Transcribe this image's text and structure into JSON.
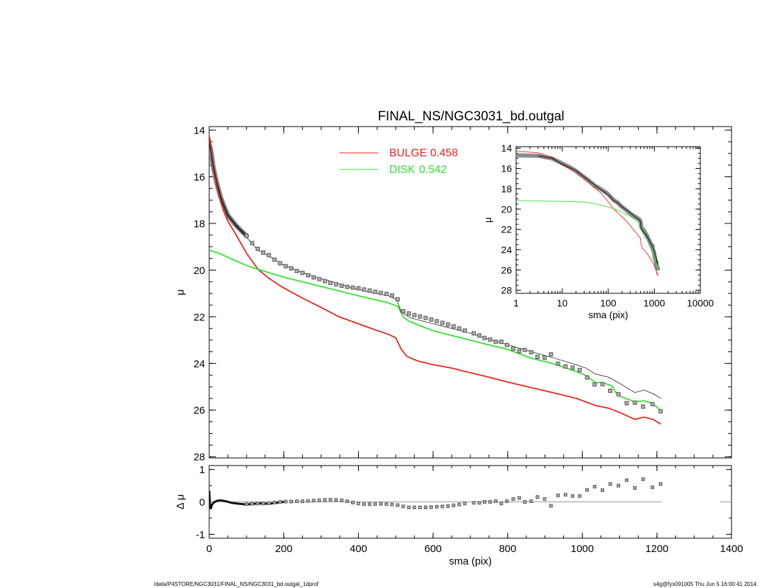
{
  "header": {
    "title": "FINAL_NS/NGC3031_bd.outgal"
  },
  "footer": {
    "path": "/data/P4STORE/NGC3031/FINAL_NS/NGC3031_bd.outgal_1dprof",
    "stamp": "s4g@fys091005  Thu Jun  5 16:00:41 2014"
  },
  "colors": {
    "bulge": "#e8231c",
    "disk": "#2fe02f",
    "model": "#333333",
    "data_fill": "#b0b0b0",
    "data_edge": "#555555",
    "zero_line": "#aaaaaa"
  },
  "chart_data": [
    {
      "panel": "main",
      "type": "line",
      "title": "FINAL_NS/NGC3031_bd.outgal",
      "xlabel": "",
      "ylabel": "μ",
      "xscale": "linear",
      "xlim": [
        0,
        1400
      ],
      "ylim": [
        13.85,
        28.05
      ],
      "y_inverted": true,
      "xticks": [
        0,
        200,
        400,
        600,
        800,
        1000,
        1200,
        1400
      ],
      "yticks": [
        14,
        16,
        18,
        20,
        22,
        24,
        26,
        28
      ],
      "legend": {
        "placement": "top-center",
        "entries": [
          {
            "label": "BULGE",
            "value": "0.458",
            "series": "bulge"
          },
          {
            "label": "DISK",
            "value": "0.542",
            "series": "disk"
          }
        ]
      },
      "series": {
        "model": [
          [
            0,
            14.45
          ],
          [
            3,
            14.75
          ],
          [
            6,
            15.0
          ],
          [
            10,
            15.55
          ],
          [
            20,
            16.2
          ],
          [
            38,
            17.2
          ],
          [
            50,
            17.6
          ],
          [
            70,
            18.1
          ],
          [
            100,
            18.6
          ],
          [
            131,
            19.15
          ],
          [
            160,
            19.4
          ],
          [
            193,
            19.73
          ],
          [
            240,
            20.05
          ],
          [
            286,
            20.3
          ],
          [
            330,
            20.5
          ],
          [
            379,
            20.74
          ],
          [
            430,
            20.95
          ],
          [
            480,
            21.1
          ],
          [
            503,
            21.27
          ],
          [
            515,
            21.8
          ],
          [
            540,
            22.05
          ],
          [
            600,
            22.3
          ],
          [
            650,
            22.5
          ],
          [
            700,
            22.7
          ],
          [
            738,
            22.91
          ],
          [
            800,
            23.2
          ],
          [
            862,
            23.49
          ],
          [
            920,
            23.75
          ],
          [
            985,
            24.06
          ],
          [
            1010,
            24.2
          ],
          [
            1035,
            24.45
          ],
          [
            1072,
            24.6
          ],
          [
            1100,
            24.85
          ],
          [
            1141,
            25.25
          ],
          [
            1165,
            25.14
          ],
          [
            1190,
            25.3
          ],
          [
            1211,
            25.5
          ]
        ],
        "bulge": [
          [
            0,
            14.3
          ],
          [
            1,
            14.3
          ],
          [
            3,
            14.45
          ],
          [
            6,
            14.9
          ],
          [
            10,
            15.6
          ],
          [
            20,
            16.4
          ],
          [
            38,
            17.45
          ],
          [
            50,
            17.9
          ],
          [
            70,
            18.43
          ],
          [
            101,
            19.3
          ],
          [
            131,
            19.97
          ],
          [
            160,
            20.35
          ],
          [
            193,
            20.7
          ],
          [
            250,
            21.2
          ],
          [
            300,
            21.6
          ],
          [
            348,
            22.0
          ],
          [
            400,
            22.3
          ],
          [
            446,
            22.57
          ],
          [
            480,
            22.75
          ],
          [
            500,
            22.9
          ],
          [
            515,
            23.4
          ],
          [
            530,
            23.7
          ],
          [
            560,
            23.9
          ],
          [
            600,
            24.05
          ],
          [
            650,
            24.2
          ],
          [
            700,
            24.4
          ],
          [
            738,
            24.54
          ],
          [
            800,
            24.8
          ],
          [
            862,
            25.03
          ],
          [
            920,
            25.25
          ],
          [
            985,
            25.5
          ],
          [
            1035,
            25.8
          ],
          [
            1072,
            25.92
          ],
          [
            1100,
            26.1
          ],
          [
            1141,
            26.4
          ],
          [
            1165,
            26.3
          ],
          [
            1190,
            26.4
          ],
          [
            1211,
            26.6
          ]
        ],
        "disk": [
          [
            0,
            19.15
          ],
          [
            1,
            19.15
          ],
          [
            30,
            19.3
          ],
          [
            50,
            19.45
          ],
          [
            100,
            19.8
          ],
          [
            131,
            19.97
          ],
          [
            200,
            20.3
          ],
          [
            300,
            20.7
          ],
          [
            400,
            21.1
          ],
          [
            480,
            21.4
          ],
          [
            506,
            21.56
          ],
          [
            520,
            22.0
          ],
          [
            534,
            22.18
          ],
          [
            600,
            22.6
          ],
          [
            738,
            23.16
          ],
          [
            800,
            23.4
          ],
          [
            862,
            23.77
          ],
          [
            920,
            24.0
          ],
          [
            985,
            24.35
          ],
          [
            1010,
            24.52
          ],
          [
            1035,
            24.82
          ],
          [
            1055,
            24.82
          ],
          [
            1080,
            24.97
          ],
          [
            1094,
            25.36
          ],
          [
            1141,
            25.65
          ],
          [
            1165,
            25.6
          ],
          [
            1187,
            25.7
          ],
          [
            1211,
            26.02
          ]
        ],
        "data_profile": [
          [
            0,
            14.6
          ],
          [
            1,
            14.7
          ],
          [
            3,
            14.75
          ],
          [
            6,
            15.0
          ],
          [
            10,
            15.5
          ],
          [
            15,
            15.9
          ],
          [
            20,
            16.25
          ],
          [
            30,
            16.85
          ],
          [
            38,
            17.2
          ],
          [
            50,
            17.65
          ],
          [
            70,
            18.05
          ],
          [
            85,
            18.3
          ],
          [
            100,
            18.53
          ]
        ],
        "data_points": [
          [
            100,
            18.53
          ],
          [
            115,
            18.84
          ],
          [
            130,
            19.09
          ],
          [
            145,
            19.25
          ],
          [
            160,
            19.36
          ],
          [
            175,
            19.55
          ],
          [
            190,
            19.71
          ],
          [
            205,
            19.83
          ],
          [
            220,
            19.93
          ],
          [
            235,
            20.04
          ],
          [
            250,
            20.12
          ],
          [
            265,
            20.22
          ],
          [
            280,
            20.31
          ],
          [
            295,
            20.39
          ],
          [
            310,
            20.47
          ],
          [
            325,
            20.55
          ],
          [
            340,
            20.61
          ],
          [
            355,
            20.67
          ],
          [
            370,
            20.72
          ],
          [
            385,
            20.75
          ],
          [
            400,
            20.78
          ],
          [
            415,
            20.83
          ],
          [
            430,
            20.88
          ],
          [
            445,
            20.93
          ],
          [
            460,
            20.98
          ],
          [
            475,
            21.02
          ],
          [
            490,
            21.09
          ],
          [
            505,
            21.25
          ],
          [
            520,
            21.76
          ],
          [
            535,
            21.86
          ],
          [
            550,
            21.93
          ],
          [
            565,
            21.99
          ],
          [
            580,
            22.05
          ],
          [
            595,
            22.12
          ],
          [
            610,
            22.19
          ],
          [
            625,
            22.26
          ],
          [
            640,
            22.33
          ],
          [
            655,
            22.41
          ],
          [
            670,
            22.5
          ],
          [
            685,
            22.59
          ],
          [
            709,
            22.71
          ],
          [
            724,
            22.8
          ],
          [
            738,
            22.91
          ],
          [
            753,
            22.98
          ],
          [
            768,
            23.07
          ],
          [
            783,
            23.07
          ],
          [
            798,
            23.21
          ],
          [
            815,
            23.36
          ],
          [
            831,
            23.47
          ],
          [
            846,
            23.42
          ],
          [
            863,
            23.52
          ],
          [
            880,
            23.72
          ],
          [
            899,
            23.75
          ],
          [
            916,
            23.61
          ],
          [
            935,
            24.01
          ],
          [
            955,
            24.13
          ],
          [
            974,
            24.18
          ],
          [
            993,
            24.28
          ],
          [
            1013,
            24.6
          ],
          [
            1033,
            24.9
          ],
          [
            1054,
            24.89
          ],
          [
            1075,
            25.17
          ],
          [
            1097,
            25.32
          ],
          [
            1119,
            25.7
          ],
          [
            1141,
            25.68
          ],
          [
            1163,
            25.85
          ],
          [
            1188,
            25.74
          ],
          [
            1210,
            26.05
          ]
        ]
      }
    },
    {
      "panel": "residual",
      "type": "scatter",
      "xlabel": "sma (pix)",
      "ylabel": "Δ μ",
      "xscale": "linear",
      "xlim": [
        0,
        1400
      ],
      "ylim": [
        -1.12,
        1.12
      ],
      "xticks": [
        0,
        200,
        400,
        600,
        800,
        1000,
        1200,
        1400
      ],
      "yticks": [
        1,
        0,
        -1
      ],
      "series": {
        "zero_line": [
          [
            0,
            0
          ],
          [
            1213,
            0
          ]
        ],
        "zero_line_edge": [
          [
            1370,
            0
          ],
          [
            1400,
            0
          ]
        ],
        "residual_profile": [
          [
            0,
            0.35
          ],
          [
            2,
            -0.05
          ],
          [
            4,
            -0.22
          ],
          [
            7,
            -0.1
          ],
          [
            12,
            -0.02
          ],
          [
            20,
            0.03
          ],
          [
            30,
            0.05
          ],
          [
            45,
            0.02
          ],
          [
            60,
            -0.03
          ],
          [
            80,
            -0.06
          ],
          [
            100,
            -0.08
          ],
          [
            120,
            -0.06
          ],
          [
            140,
            -0.05
          ],
          [
            160,
            -0.06
          ],
          [
            180,
            -0.03
          ],
          [
            200,
            0.0
          ]
        ],
        "residual_points": [
          [
            100,
            -0.07
          ],
          [
            115,
            -0.06
          ],
          [
            130,
            -0.05
          ],
          [
            145,
            -0.05
          ],
          [
            160,
            -0.04
          ],
          [
            175,
            -0.02
          ],
          [
            190,
            0.0
          ],
          [
            205,
            0.01
          ],
          [
            220,
            0.01
          ],
          [
            235,
            0.02
          ],
          [
            250,
            0.02
          ],
          [
            265,
            0.03
          ],
          [
            280,
            0.04
          ],
          [
            295,
            0.05
          ],
          [
            310,
            0.06
          ],
          [
            325,
            0.07
          ],
          [
            340,
            0.06
          ],
          [
            355,
            0.05
          ],
          [
            370,
            0.02
          ],
          [
            385,
            -0.02
          ],
          [
            400,
            -0.05
          ],
          [
            415,
            -0.07
          ],
          [
            430,
            -0.07
          ],
          [
            445,
            -0.07
          ],
          [
            460,
            -0.06
          ],
          [
            475,
            -0.07
          ],
          [
            490,
            -0.08
          ],
          [
            505,
            -0.1
          ],
          [
            520,
            -0.14
          ],
          [
            535,
            -0.17
          ],
          [
            550,
            -0.17
          ],
          [
            565,
            -0.17
          ],
          [
            580,
            -0.17
          ],
          [
            595,
            -0.16
          ],
          [
            610,
            -0.15
          ],
          [
            625,
            -0.14
          ],
          [
            640,
            -0.13
          ],
          [
            655,
            -0.11
          ],
          [
            670,
            -0.08
          ],
          [
            685,
            -0.05
          ],
          [
            709,
            -0.03
          ],
          [
            724,
            -0.03
          ],
          [
            738,
            0.0
          ],
          [
            753,
            0.0
          ],
          [
            768,
            0.02
          ],
          [
            783,
            -0.05
          ],
          [
            798,
            0.02
          ],
          [
            815,
            0.09
          ],
          [
            831,
            0.12
          ],
          [
            846,
            0.0
          ],
          [
            863,
            0.02
          ],
          [
            880,
            0.15
          ],
          [
            899,
            0.09
          ],
          [
            916,
            -0.12
          ],
          [
            935,
            0.2
          ],
          [
            955,
            0.22
          ],
          [
            974,
            0.18
          ],
          [
            993,
            0.18
          ],
          [
            1013,
            0.37
          ],
          [
            1033,
            0.47
          ],
          [
            1054,
            0.36
          ],
          [
            1075,
            0.55
          ],
          [
            1097,
            0.5
          ],
          [
            1119,
            0.67
          ],
          [
            1141,
            0.43
          ],
          [
            1163,
            0.7
          ],
          [
            1188,
            0.45
          ],
          [
            1210,
            0.55
          ]
        ]
      }
    },
    {
      "panel": "inset",
      "type": "line",
      "xlabel": "sma (pix)",
      "ylabel": "μ",
      "xscale": "log",
      "xlim": [
        1,
        10000
      ],
      "ylim": [
        13.85,
        28.3
      ],
      "y_inverted": true,
      "xticks": [
        1,
        10,
        100,
        1000,
        10000
      ],
      "yticks": [
        14,
        16,
        18,
        20,
        22,
        24,
        26,
        28
      ],
      "series_source": "main"
    }
  ]
}
